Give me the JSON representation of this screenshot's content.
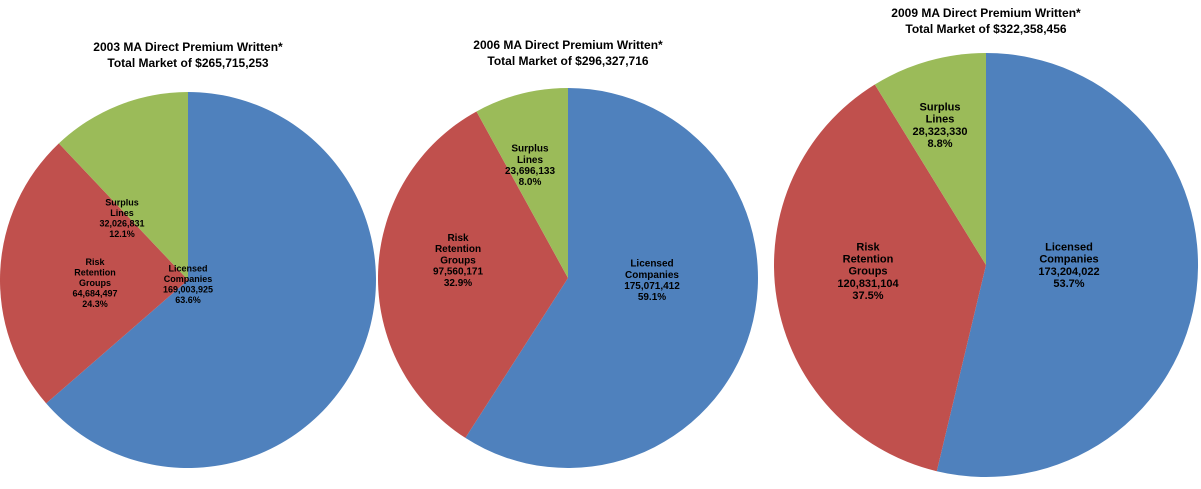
{
  "colors": {
    "licensed": "#4F81BD",
    "risk_retention": "#C0504D",
    "surplus": "#9BBB59"
  },
  "chart_data": [
    {
      "type": "pie",
      "title": "2003 MA Direct Premium Written*",
      "subtitle": "Total Market of $265,715,253",
      "slices": [
        {
          "label": [
            "Licensed",
            "Companies"
          ],
          "value": 169003925,
          "value_text": "169,003,925",
          "percent": "63.6%",
          "color": "#4F81BD"
        },
        {
          "label": [
            "Risk",
            "Retention",
            "Groups"
          ],
          "value": 64684497,
          "value_text": "64,684,497",
          "percent": "24.3%",
          "color": "#C0504D"
        },
        {
          "label": [
            "Surplus",
            "Lines"
          ],
          "value": 32026831,
          "value_text": "32,026,831",
          "percent": "12.1%",
          "color": "#9BBB59"
        }
      ]
    },
    {
      "type": "pie",
      "title": "2006 MA Direct Premium Written*",
      "subtitle": "Total Market of $296,327,716",
      "slices": [
        {
          "label": [
            "Licensed",
            "Companies"
          ],
          "value": 175071412,
          "value_text": "175,071,412",
          "percent": "59.1%",
          "color": "#4F81BD"
        },
        {
          "label": [
            "Risk",
            "Retention",
            "Groups"
          ],
          "value": 97560171,
          "value_text": "97,560,171",
          "percent": "32.9%",
          "color": "#C0504D"
        },
        {
          "label": [
            "Surplus",
            "Lines"
          ],
          "value": 23696133,
          "value_text": "23,696,133",
          "percent": "8.0%",
          "color": "#9BBB59"
        }
      ]
    },
    {
      "type": "pie",
      "title": "2009 MA Direct Premium Written*",
      "subtitle": "Total Market of $322,358,456",
      "slices": [
        {
          "label": [
            "Licensed",
            "Companies"
          ],
          "value": 173204022,
          "value_text": "173,204,022",
          "percent": "53.7%",
          "color": "#4F81BD"
        },
        {
          "label": [
            "Risk",
            "Retention",
            "Groups"
          ],
          "value": 120831104,
          "value_text": "120,831,104",
          "percent": "37.5%",
          "color": "#C0504D"
        },
        {
          "label": [
            "Surplus",
            "Lines"
          ],
          "value": 28323330,
          "value_text": "28,323,330",
          "percent": "8.8%",
          "color": "#9BBB59"
        }
      ]
    }
  ]
}
